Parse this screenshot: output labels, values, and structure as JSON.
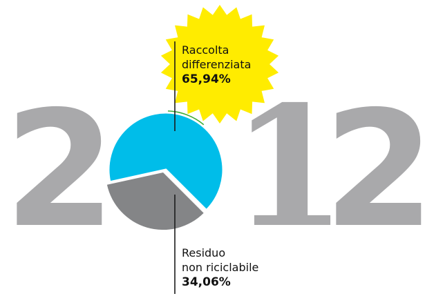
{
  "year_digits": [
    "2",
    "1",
    "2"
  ],
  "colors": {
    "digits": "#a9a9ab",
    "recycled": "#00bde9",
    "residual": "#848587",
    "sun": "#ffec00",
    "green_tip": "#3cab33",
    "leader_line": "#1a1a1a"
  },
  "chart_data": {
    "type": "pie",
    "slices": [
      {
        "label_lines": [
          "Raccolta",
          "differenziata"
        ],
        "value": 65.94,
        "value_text": "65,94%"
      },
      {
        "label_lines": [
          "Residuo",
          "non riciclabile"
        ],
        "value": 34.06,
        "value_text": "34,06%"
      }
    ],
    "legend": "callouts"
  }
}
